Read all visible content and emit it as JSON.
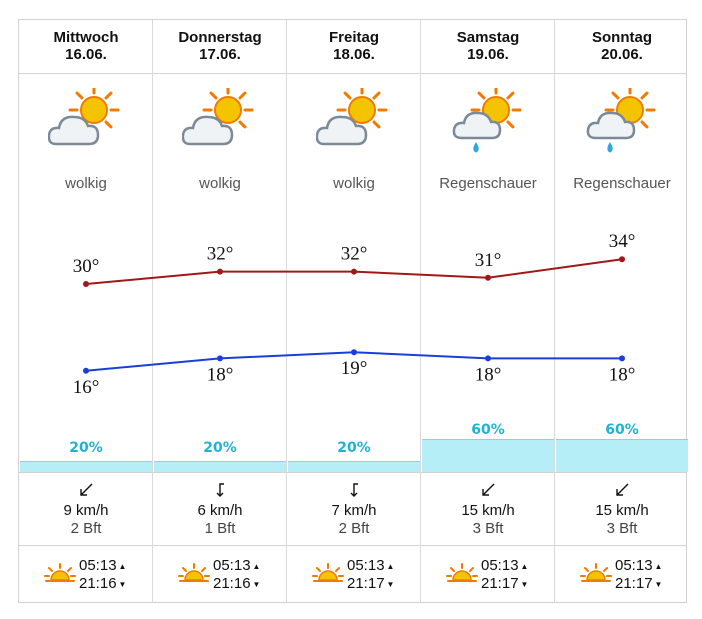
{
  "days": [
    {
      "name": "Mittwoch",
      "date": "16.06.",
      "condition": "wolkig",
      "icon": "partly-cloudy-icon",
      "high": "30°",
      "low": "16°",
      "high_val": 30,
      "low_val": 16,
      "precip": "20%",
      "precip_val": 20,
      "wind_dir": "NE",
      "wind_speed": "9 km/h",
      "bft": "2 Bft",
      "sunrise": "05:13",
      "sunset": "21:16"
    },
    {
      "name": "Donnerstag",
      "date": "17.06.",
      "condition": "wolkig",
      "icon": "partly-cloudy-icon",
      "high": "32°",
      "low": "18°",
      "high_val": 32,
      "low_val": 18,
      "precip": "20%",
      "precip_val": 20,
      "wind_dir": "N",
      "wind_speed": "6 km/h",
      "bft": "1 Bft",
      "sunrise": "05:13",
      "sunset": "21:16"
    },
    {
      "name": "Freitag",
      "date": "18.06.",
      "condition": "wolkig",
      "icon": "partly-cloudy-icon",
      "high": "32°",
      "low": "19°",
      "high_val": 32,
      "low_val": 19,
      "precip": "20%",
      "precip_val": 20,
      "wind_dir": "N",
      "wind_speed": "7 km/h",
      "bft": "2 Bft",
      "sunrise": "05:13",
      "sunset": "21:17"
    },
    {
      "name": "Samstag",
      "date": "19.06.",
      "condition": "Regenschauer",
      "icon": "rain-shower-icon",
      "high": "31°",
      "low": "18°",
      "high_val": 31,
      "low_val": 18,
      "precip": "60%",
      "precip_val": 60,
      "wind_dir": "NE",
      "wind_speed": "15 km/h",
      "bft": "3 Bft",
      "sunrise": "05:13",
      "sunset": "21:17"
    },
    {
      "name": "Sonntag",
      "date": "20.06.",
      "condition": "Regenschauer",
      "icon": "rain-shower-icon",
      "high": "34°",
      "low": "18°",
      "high_val": 34,
      "low_val": 18,
      "precip": "60%",
      "precip_val": 60,
      "wind_dir": "NE",
      "wind_speed": "15 km/h",
      "bft": "3 Bft",
      "sunrise": "05:13",
      "sunset": "21:17"
    }
  ],
  "chart_data": {
    "type": "line",
    "categories": [
      "Mittwoch",
      "Donnerstag",
      "Freitag",
      "Samstag",
      "Sonntag"
    ],
    "series": [
      {
        "values": [
          30,
          32,
          32,
          31,
          34
        ],
        "color": "#a01818"
      },
      {
        "values": [
          16,
          18,
          19,
          18,
          18
        ],
        "color": "#1a3fd8"
      }
    ]
  },
  "colors": {
    "high_line": "#a01818",
    "low_line": "#1a3fd8",
    "precip_text": "#1fb3d0",
    "precip_bar": "#b6eef7",
    "sun": "#f5c400",
    "sun_ray": "#f07b00"
  }
}
